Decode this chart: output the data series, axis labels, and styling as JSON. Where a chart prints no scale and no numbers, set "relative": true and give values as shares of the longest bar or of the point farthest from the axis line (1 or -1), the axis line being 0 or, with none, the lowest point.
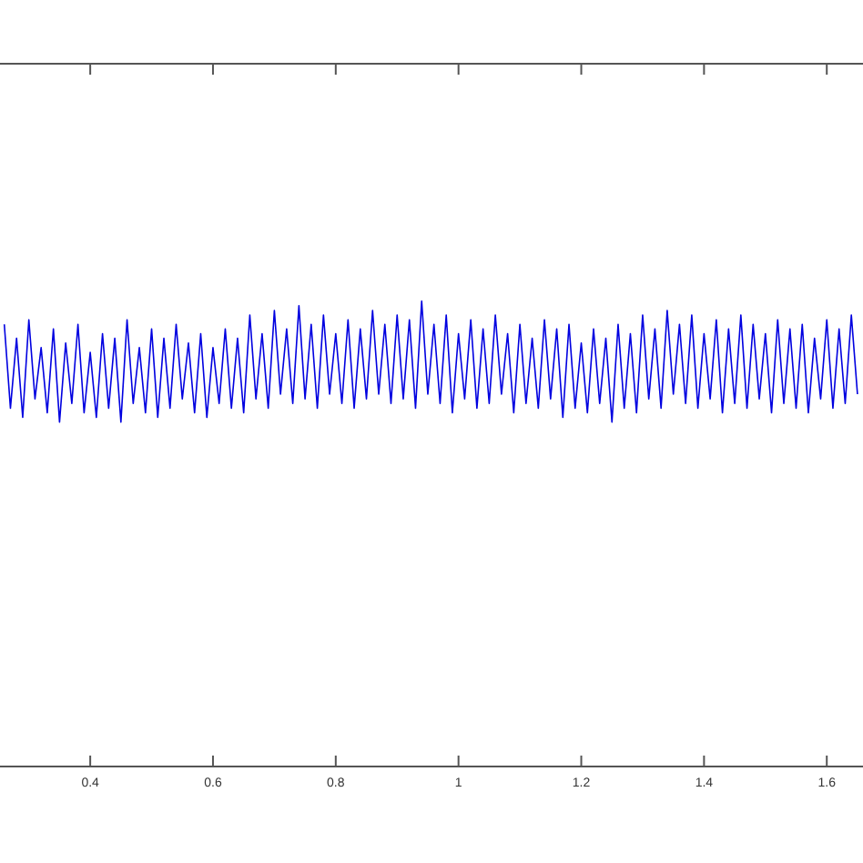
{
  "chart_data": {
    "type": "line",
    "relative": true,
    "xlim": [
      0.253,
      1.659
    ],
    "xticks": [
      0.4,
      0.6,
      0.8,
      {
        "value": 1,
        "label": "1"
      },
      1.2,
      1.4,
      1.6
    ],
    "grid": false,
    "marker": "none",
    "line_style": "solid",
    "series": [
      {
        "color": "#0000e0",
        "x": [
          0.26,
          0.27,
          0.28,
          0.29,
          0.3,
          0.31,
          0.32,
          0.33,
          0.34,
          0.35,
          0.36,
          0.37,
          0.38,
          0.39,
          0.4,
          0.41,
          0.42,
          0.43,
          0.44,
          0.45,
          0.46,
          0.47,
          0.48,
          0.49,
          0.5,
          0.51,
          0.52,
          0.53,
          0.54,
          0.55,
          0.56,
          0.57,
          0.58,
          0.59,
          0.6,
          0.61,
          0.62,
          0.63,
          0.64,
          0.65,
          0.66,
          0.67,
          0.68,
          0.69,
          0.7,
          0.71,
          0.72,
          0.73,
          0.74,
          0.75,
          0.76,
          0.77,
          0.78,
          0.79,
          0.8,
          0.81,
          0.82,
          0.83,
          0.84,
          0.85,
          0.86,
          0.87,
          0.88,
          0.89,
          0.9,
          0.91,
          0.92,
          0.93,
          0.94,
          0.95,
          0.96,
          0.97,
          0.98,
          0.99,
          1,
          1.01,
          1.02,
          1.03,
          1.04,
          1.05,
          1.06,
          1.07,
          1.08,
          1.09,
          1.1,
          1.11,
          1.12,
          1.13,
          1.14,
          1.15,
          1.16,
          1.17,
          1.18,
          1.19,
          1.2,
          1.21,
          1.22,
          1.23,
          1.24,
          1.25,
          1.26,
          1.27,
          1.28,
          1.29,
          1.3,
          1.31,
          1.32,
          1.33,
          1.34,
          1.35,
          1.36,
          1.37,
          1.38,
          1.39,
          1.4,
          1.41,
          1.42,
          1.43,
          1.44,
          1.45,
          1.46,
          1.47,
          1.48,
          1.49,
          1.5,
          1.51,
          1.52,
          1.53,
          1.54,
          1.55,
          1.56,
          1.57,
          1.58,
          1.59,
          1.6,
          1.61,
          1.62,
          1.63,
          1.64,
          1.65
        ],
        "values": [
          0.95,
          0.77,
          0.92,
          0.75,
          0.96,
          0.79,
          0.9,
          0.76,
          0.94,
          0.74,
          0.91,
          0.78,
          0.95,
          0.76,
          0.89,
          0.75,
          0.93,
          0.77,
          0.92,
          0.74,
          0.96,
          0.78,
          0.9,
          0.76,
          0.94,
          0.75,
          0.92,
          0.77,
          0.95,
          0.79,
          0.91,
          0.76,
          0.93,
          0.75,
          0.9,
          0.78,
          0.94,
          0.77,
          0.92,
          0.76,
          0.97,
          0.79,
          0.93,
          0.77,
          0.98,
          0.8,
          0.94,
          0.78,
          0.99,
          0.79,
          0.95,
          0.77,
          0.97,
          0.8,
          0.93,
          0.78,
          0.96,
          0.77,
          0.94,
          0.79,
          0.98,
          0.8,
          0.95,
          0.78,
          0.97,
          0.79,
          0.96,
          0.77,
          1,
          0.8,
          0.95,
          0.78,
          0.97,
          0.76,
          0.93,
          0.79,
          0.96,
          0.77,
          0.94,
          0.78,
          0.97,
          0.8,
          0.93,
          0.76,
          0.95,
          0.78,
          0.92,
          0.77,
          0.96,
          0.79,
          0.94,
          0.75,
          0.95,
          0.77,
          0.91,
          0.76,
          0.94,
          0.78,
          0.92,
          0.74,
          0.95,
          0.77,
          0.93,
          0.76,
          0.97,
          0.79,
          0.94,
          0.77,
          0.98,
          0.8,
          0.95,
          0.78,
          0.97,
          0.77,
          0.93,
          0.79,
          0.96,
          0.76,
          0.94,
          0.78,
          0.97,
          0.77,
          0.95,
          0.79,
          0.93,
          0.76,
          0.96,
          0.78,
          0.94,
          0.77,
          0.95,
          0.76,
          0.92,
          0.79,
          0.96,
          0.77,
          0.94,
          0.78,
          0.97,
          0.8
        ]
      }
    ]
  }
}
